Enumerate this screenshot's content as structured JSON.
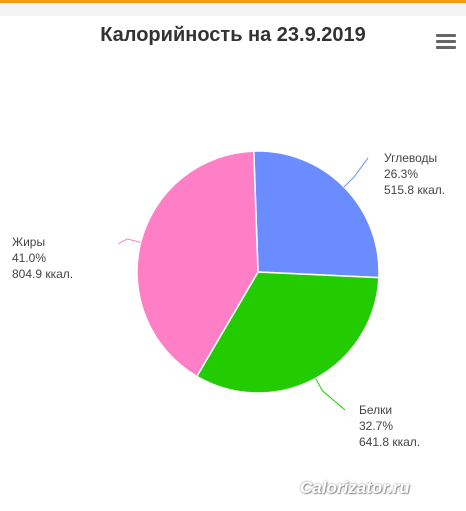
{
  "title": "Калорийность на 23.9.2019",
  "menu_icon": "hamburger-menu-icon",
  "watermark": "Calorizator.ru",
  "chart_data": {
    "type": "pie",
    "title": "Калорийность на 23.9.2019",
    "slices": [
      {
        "name": "Углеводы",
        "percent": 26.3,
        "percent_label": "26.3%",
        "value": 515.8,
        "value_label": "515.8 ккал.",
        "color": "#6b8cff"
      },
      {
        "name": "Белки",
        "percent": 32.7,
        "percent_label": "32.7%",
        "value": 641.8,
        "value_label": "641.8 ккал.",
        "color": "#22cc00"
      },
      {
        "name": "Жиры",
        "percent": 41.0,
        "percent_label": "41.0%",
        "value": 804.9,
        "value_label": "804.9 ккал.",
        "color": "#ff7fc7"
      }
    ]
  }
}
